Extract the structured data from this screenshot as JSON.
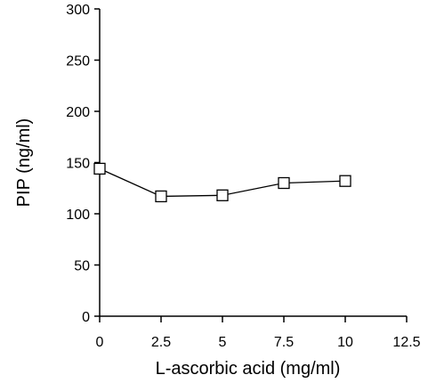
{
  "chart_data": {
    "type": "line",
    "xlabel": "L-ascorbic acid (mg/ml)",
    "ylabel": "PIP (ng/ml)",
    "xlim": [
      0,
      12.5
    ],
    "ylim": [
      0,
      300
    ],
    "x_ticks": [
      "0",
      "2.5",
      "5",
      "7.5",
      "10",
      "12.5"
    ],
    "y_ticks": [
      "0",
      "50",
      "100",
      "150",
      "200",
      "250",
      "300"
    ],
    "grid": false,
    "series": [
      {
        "x": [
          0,
          2.5,
          5,
          7.5,
          10
        ],
        "values": [
          144,
          117,
          118,
          130,
          132
        ],
        "marker": "open-square",
        "color": "#000000"
      }
    ]
  }
}
